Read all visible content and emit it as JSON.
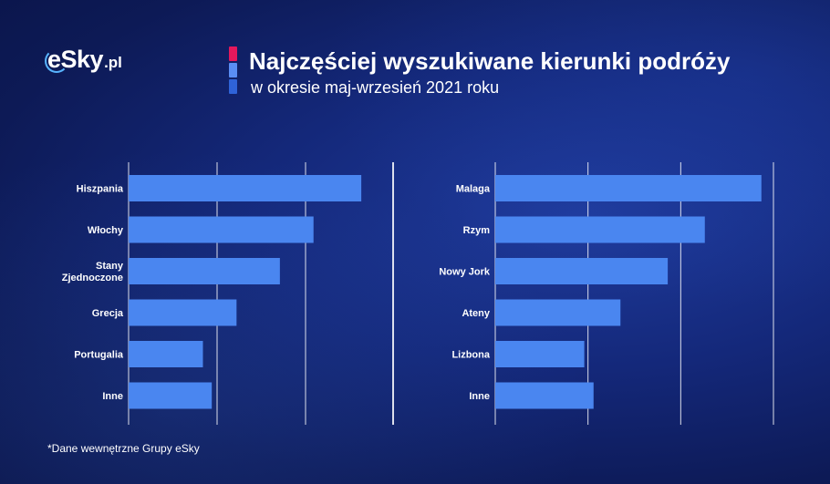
{
  "logo": {
    "main": "eSky",
    "suffix": ".pl"
  },
  "header": {
    "title": "Najczęściej wyszukiwane kierunki podróży",
    "subtitle": "w okresie maj-wrzesień 2021 roku"
  },
  "footnote": "*Dane wewnętrzne Grupy eSky",
  "colors": {
    "bar": "#4a86f0",
    "accent_pink": "#e4185c",
    "accent_light_blue": "#5a8ef5",
    "accent_blue": "#2f63d8"
  },
  "chart_data": [
    {
      "type": "bar",
      "orientation": "horizontal",
      "categories": [
        "Hiszpania",
        "Włochy",
        "Stany Zjednoczone",
        "Grecja",
        "Portugalia",
        "Inne"
      ],
      "category_lines": [
        [
          "Hiszpania"
        ],
        [
          "Włochy"
        ],
        [
          "Stany",
          "Zjednoczone"
        ],
        [
          "Grecja"
        ],
        [
          "Portugalia"
        ],
        [
          "Inne"
        ]
      ],
      "values": [
        26.3,
        20.9,
        17.1,
        12.2,
        8.4,
        9.4
      ],
      "xlim": [
        0,
        30
      ],
      "grid": true,
      "gridlines_at": [
        10,
        20,
        30
      ]
    },
    {
      "type": "bar",
      "orientation": "horizontal",
      "categories": [
        "Malaga",
        "Rzym",
        "Nowy Jork",
        "Ateny",
        "Lizbona",
        "Inne"
      ],
      "category_lines": [
        [
          "Malaga"
        ],
        [
          "Rzym"
        ],
        [
          "Nowy Jork"
        ],
        [
          "Ateny"
        ],
        [
          "Lizbona"
        ],
        [
          "Inne"
        ]
      ],
      "values": [
        28.7,
        22.6,
        18.6,
        13.5,
        9.6,
        10.6
      ],
      "xlim": [
        0,
        30
      ],
      "grid": true,
      "gridlines_at": [
        10,
        20,
        30
      ]
    }
  ]
}
